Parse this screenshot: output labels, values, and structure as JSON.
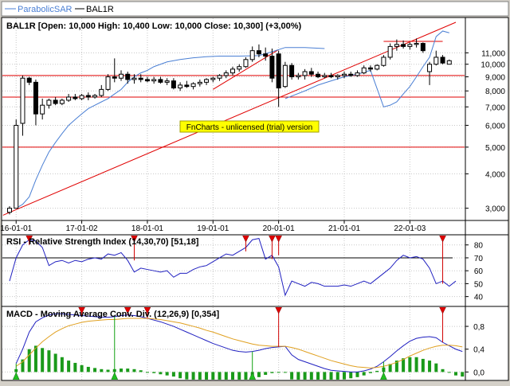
{
  "legend": [
    {
      "label": "ParabolicSAR",
      "color": "#4a7fd4"
    },
    {
      "label": "BAL1R",
      "color": "#000000"
    }
  ],
  "watermark": "FnCharts - unlicensed (trial) version",
  "chart_data": [
    {
      "type": "candlestick",
      "title": "BAL1R [Open: 10,000  High: 10,400  Low: 10,000  Close: 10,300] (+3,00%)",
      "scale": "log",
      "ylim": [
        2.8,
        14.2
      ],
      "xlim": [
        0,
        68
      ],
      "yticks": [
        3,
        4,
        5,
        6,
        7,
        8,
        9,
        10,
        11
      ],
      "ytick_labels": [
        "3,000",
        "4,000",
        "5,000",
        "6,000",
        "7,000",
        "8,000",
        "9,000",
        "10,000",
        "11,000"
      ],
      "xticks": [
        {
          "x": 1,
          "label": "16-01-01"
        },
        {
          "x": 11,
          "label": "17-01-02"
        },
        {
          "x": 21,
          "label": "18-01-01"
        },
        {
          "x": 31,
          "label": "19-01-01"
        },
        {
          "x": 41,
          "label": "20-01-01"
        },
        {
          "x": 51,
          "label": "21-01-01"
        },
        {
          "x": 61,
          "label": "22-01-03"
        }
      ],
      "candles": [
        {
          "o": 2.9,
          "h": 3.05,
          "l": 2.85,
          "c": 3.0
        },
        {
          "o": 3.0,
          "h": 6.3,
          "l": 3.0,
          "c": 6.0
        },
        {
          "o": 6.1,
          "h": 9.1,
          "l": 5.5,
          "c": 8.9
        },
        {
          "o": 8.9,
          "h": 9.0,
          "l": 8.4,
          "c": 8.6
        },
        {
          "o": 8.6,
          "h": 8.8,
          "l": 6.0,
          "c": 6.6
        },
        {
          "o": 6.6,
          "h": 7.5,
          "l": 6.3,
          "c": 7.1
        },
        {
          "o": 7.1,
          "h": 7.5,
          "l": 6.9,
          "c": 7.4
        },
        {
          "o": 7.4,
          "h": 7.6,
          "l": 7.1,
          "c": 7.2
        },
        {
          "o": 7.2,
          "h": 7.5,
          "l": 7.1,
          "c": 7.4
        },
        {
          "o": 7.4,
          "h": 7.8,
          "l": 7.3,
          "c": 7.6
        },
        {
          "o": 7.6,
          "h": 7.8,
          "l": 7.4,
          "c": 7.5
        },
        {
          "o": 7.5,
          "h": 7.8,
          "l": 7.4,
          "c": 7.7
        },
        {
          "o": 7.7,
          "h": 7.9,
          "l": 7.4,
          "c": 7.6
        },
        {
          "o": 7.6,
          "h": 7.8,
          "l": 7.5,
          "c": 7.7
        },
        {
          "o": 7.7,
          "h": 8.4,
          "l": 7.6,
          "c": 8.1
        },
        {
          "o": 8.1,
          "h": 9.2,
          "l": 8.0,
          "c": 9.0
        },
        {
          "o": 9.0,
          "h": 10.5,
          "l": 8.6,
          "c": 8.9
        },
        {
          "o": 8.9,
          "h": 9.5,
          "l": 8.7,
          "c": 9.2
        },
        {
          "o": 9.2,
          "h": 9.4,
          "l": 8.5,
          "c": 8.8
        },
        {
          "o": 8.8,
          "h": 9.2,
          "l": 8.5,
          "c": 8.9
        },
        {
          "o": 8.9,
          "h": 9.2,
          "l": 8.6,
          "c": 8.8
        },
        {
          "o": 8.8,
          "h": 9.0,
          "l": 8.6,
          "c": 8.7
        },
        {
          "o": 8.7,
          "h": 9.0,
          "l": 8.5,
          "c": 8.8
        },
        {
          "o": 8.8,
          "h": 9.0,
          "l": 8.5,
          "c": 8.6
        },
        {
          "o": 8.6,
          "h": 8.9,
          "l": 8.4,
          "c": 8.7
        },
        {
          "o": 8.7,
          "h": 8.9,
          "l": 8.1,
          "c": 8.2
        },
        {
          "o": 8.2,
          "h": 8.6,
          "l": 8.0,
          "c": 8.4
        },
        {
          "o": 8.4,
          "h": 8.7,
          "l": 8.2,
          "c": 8.3
        },
        {
          "o": 8.3,
          "h": 8.6,
          "l": 8.1,
          "c": 8.5
        },
        {
          "o": 8.5,
          "h": 8.8,
          "l": 8.3,
          "c": 8.6
        },
        {
          "o": 8.6,
          "h": 8.9,
          "l": 8.4,
          "c": 8.8
        },
        {
          "o": 8.8,
          "h": 9.0,
          "l": 8.6,
          "c": 8.9
        },
        {
          "o": 8.9,
          "h": 9.2,
          "l": 8.7,
          "c": 9.1
        },
        {
          "o": 9.1,
          "h": 9.5,
          "l": 8.9,
          "c": 9.3
        },
        {
          "o": 9.3,
          "h": 9.8,
          "l": 9.1,
          "c": 9.6
        },
        {
          "o": 9.6,
          "h": 10.0,
          "l": 9.4,
          "c": 9.8
        },
        {
          "o": 9.8,
          "h": 10.6,
          "l": 9.7,
          "c": 10.4
        },
        {
          "o": 10.4,
          "h": 11.6,
          "l": 10.2,
          "c": 11.2
        },
        {
          "o": 11.2,
          "h": 11.8,
          "l": 10.6,
          "c": 10.9
        },
        {
          "o": 10.9,
          "h": 11.5,
          "l": 10.3,
          "c": 10.7
        },
        {
          "o": 10.7,
          "h": 11.4,
          "l": 8.6,
          "c": 8.9
        },
        {
          "o": 10.9,
          "h": 11.2,
          "l": 7.0,
          "c": 8.2
        },
        {
          "o": 8.3,
          "h": 10.2,
          "l": 8.2,
          "c": 9.9
        },
        {
          "o": 9.9,
          "h": 10.1,
          "l": 8.8,
          "c": 9.0
        },
        {
          "o": 9.0,
          "h": 9.3,
          "l": 8.8,
          "c": 9.1
        },
        {
          "o": 9.1,
          "h": 9.6,
          "l": 8.8,
          "c": 9.4
        },
        {
          "o": 9.4,
          "h": 9.7,
          "l": 9.0,
          "c": 9.2
        },
        {
          "o": 9.2,
          "h": 9.4,
          "l": 8.9,
          "c": 9.0
        },
        {
          "o": 9.0,
          "h": 9.3,
          "l": 8.9,
          "c": 9.1
        },
        {
          "o": 9.1,
          "h": 9.3,
          "l": 8.9,
          "c": 9.0
        },
        {
          "o": 9.0,
          "h": 9.2,
          "l": 8.8,
          "c": 9.1
        },
        {
          "o": 9.1,
          "h": 9.4,
          "l": 8.9,
          "c": 9.2
        },
        {
          "o": 9.2,
          "h": 9.4,
          "l": 9.0,
          "c": 9.1
        },
        {
          "o": 9.1,
          "h": 9.5,
          "l": 9.0,
          "c": 9.3
        },
        {
          "o": 9.3,
          "h": 9.9,
          "l": 9.2,
          "c": 9.7
        },
        {
          "o": 9.7,
          "h": 9.9,
          "l": 9.4,
          "c": 9.6
        },
        {
          "o": 9.6,
          "h": 10.0,
          "l": 9.5,
          "c": 9.9
        },
        {
          "o": 9.9,
          "h": 10.8,
          "l": 9.8,
          "c": 10.6
        },
        {
          "o": 10.6,
          "h": 11.9,
          "l": 10.4,
          "c": 11.6
        },
        {
          "o": 11.6,
          "h": 12.3,
          "l": 11.2,
          "c": 11.8
        },
        {
          "o": 11.8,
          "h": 12.2,
          "l": 11.4,
          "c": 11.6
        },
        {
          "o": 11.6,
          "h": 12.0,
          "l": 11.3,
          "c": 11.8
        },
        {
          "o": 11.8,
          "h": 12.4,
          "l": 11.5,
          "c": 11.9
        },
        {
          "o": 11.9,
          "h": 12.0,
          "l": 11.0,
          "c": 11.2
        },
        {
          "o": 9.4,
          "h": 10.2,
          "l": 8.4,
          "c": 10.0
        },
        {
          "o": 10.0,
          "h": 11.2,
          "l": 9.9,
          "c": 10.6
        },
        {
          "o": 10.6,
          "h": 10.8,
          "l": 10.0,
          "c": 10.1
        },
        {
          "o": 10.0,
          "h": 10.4,
          "l": 10.0,
          "c": 10.3
        }
      ],
      "sar": [
        [
          1,
          3.0
        ],
        [
          2,
          3.1
        ],
        [
          3,
          3.3
        ],
        [
          4,
          3.8
        ],
        [
          5,
          4.3
        ],
        [
          6,
          4.8
        ],
        [
          7,
          5.2
        ],
        [
          8,
          5.6
        ],
        [
          9,
          6.0
        ],
        [
          10,
          6.3
        ],
        [
          11,
          6.6
        ],
        [
          12,
          6.9
        ],
        [
          13,
          7.1
        ],
        [
          14,
          7.3
        ],
        [
          15,
          7.5
        ],
        [
          16,
          7.8
        ],
        [
          17,
          8.1
        ],
        [
          18,
          8.6
        ],
        [
          19,
          9.0
        ],
        [
          20,
          9.3
        ],
        [
          21,
          9.5
        ],
        [
          22,
          9.8
        ],
        [
          24,
          10.2
        ],
        [
          26,
          10.4
        ],
        [
          28,
          10.55
        ],
        [
          30,
          10.65
        ],
        [
          32,
          10.7
        ],
        [
          35,
          10.7
        ],
        [
          38,
          10.75
        ],
        [
          40,
          11.1
        ],
        [
          42,
          11.5
        ],
        [
          45,
          11.5
        ],
        [
          48,
          11.4
        ],
        [
          42,
          7.5
        ],
        [
          45,
          8.0
        ],
        [
          47,
          8.4
        ],
        [
          49,
          8.7
        ],
        [
          51,
          9.0
        ],
        [
          53,
          9.2
        ],
        [
          55,
          9.5
        ],
        [
          57,
          7.0
        ],
        [
          58,
          7.1
        ],
        [
          59,
          7.3
        ],
        [
          60,
          7.8
        ],
        [
          61,
          8.3
        ],
        [
          62,
          9.0
        ],
        [
          63,
          9.8
        ],
        [
          64,
          10.6
        ],
        [
          65,
          12.6
        ],
        [
          66,
          13.2
        ],
        [
          67,
          13.0
        ]
      ],
      "trendlines": [
        {
          "x": [
            -1,
            68
          ],
          "y": [
            2.83,
            14.2
          ]
        },
        {
          "x": [
            31,
            41
          ],
          "y": [
            8.1,
            11.3
          ]
        },
        {
          "x": [
            57,
            66
          ],
          "y": [
            12.1,
            12.1
          ]
        }
      ],
      "hlines": [
        9.1,
        7.6,
        5.0
      ]
    },
    {
      "type": "line",
      "title": "RSI - Relative Strength Index (14,30,70) [51,18]",
      "ylim": [
        33,
        86
      ],
      "yticks": [
        40,
        50,
        60,
        70,
        80
      ],
      "ytick_labels": [
        "40",
        "50",
        "60",
        "70",
        "80"
      ],
      "hlines": [
        70,
        30
      ],
      "series": [
        {
          "values": [
            52,
            70,
            80,
            84,
            83,
            78,
            64,
            67,
            68,
            66,
            68,
            67,
            69,
            70,
            69,
            73,
            72,
            74,
            68,
            59,
            62,
            61,
            60,
            59,
            60,
            55,
            58,
            58,
            61,
            63,
            64,
            67,
            70,
            73,
            72,
            75,
            78,
            84,
            85,
            69,
            72,
            63,
            41,
            52,
            50,
            48,
            51,
            50,
            48,
            48,
            48,
            49,
            48,
            50,
            52,
            50,
            54,
            58,
            62,
            68,
            72,
            70,
            71,
            69,
            62,
            50,
            52,
            48,
            52
          ]
        }
      ],
      "markers": [
        3,
        19,
        36,
        40,
        41,
        66
      ]
    },
    {
      "type": "bar+line",
      "title": "MACD - Moving Average Conv. Div. (12,26,9) [0,354]",
      "ylim": [
        -0.12,
        1.08
      ],
      "yticks": [
        0.0,
        0.4,
        0.8
      ],
      "ytick_labels": [
        "0,0",
        "0,4",
        "0,8"
      ],
      "series": [
        {
          "values": [
            0.15,
            0.4,
            0.7,
            0.88,
            0.95,
            1.0,
            1.02,
            1.02,
            1.01,
            1.0,
            0.99,
            0.98,
            0.97,
            0.96,
            0.96,
            0.97,
            0.99,
            1.0,
            0.99,
            0.97,
            0.94,
            0.91,
            0.88,
            0.84,
            0.8,
            0.75,
            0.7,
            0.65,
            0.6,
            0.55,
            0.5,
            0.46,
            0.42,
            0.38,
            0.36,
            0.35,
            0.36,
            0.38,
            0.41,
            0.43,
            0.44,
            0.45,
            0.3,
            0.22,
            0.18,
            0.14,
            0.1,
            0.06,
            0.03,
            0.02,
            0.01,
            0.0,
            0.0,
            0.02,
            0.05,
            0.1,
            0.18,
            0.27,
            0.37,
            0.46,
            0.54,
            0.59,
            0.61,
            0.62,
            0.6,
            0.52,
            0.46,
            0.4,
            0.36
          ]
        },
        {
          "values": [
            0.1,
            0.18,
            0.3,
            0.42,
            0.53,
            0.62,
            0.7,
            0.76,
            0.81,
            0.84,
            0.87,
            0.89,
            0.9,
            0.91,
            0.92,
            0.92,
            0.93,
            0.94,
            0.94,
            0.94,
            0.94,
            0.93,
            0.92,
            0.9,
            0.88,
            0.86,
            0.83,
            0.8,
            0.77,
            0.73,
            0.7,
            0.66,
            0.62,
            0.58,
            0.55,
            0.52,
            0.49,
            0.47,
            0.46,
            0.45,
            0.45,
            0.45,
            0.43,
            0.4,
            0.36,
            0.32,
            0.28,
            0.24,
            0.2,
            0.17,
            0.14,
            0.11,
            0.09,
            0.08,
            0.07,
            0.08,
            0.1,
            0.13,
            0.17,
            0.22,
            0.28,
            0.33,
            0.38,
            0.42,
            0.45,
            0.47,
            0.47,
            0.46,
            0.44
          ]
        }
      ],
      "histogram": [
        0.05,
        0.22,
        0.4,
        0.46,
        0.42,
        0.38,
        0.32,
        0.26,
        0.2,
        0.16,
        0.12,
        0.09,
        0.07,
        0.05,
        0.04,
        0.05,
        0.06,
        0.06,
        0.05,
        0.03,
        0.0,
        -0.02,
        -0.04,
        -0.06,
        -0.08,
        -0.11,
        -0.13,
        -0.15,
        -0.17,
        -0.18,
        -0.2,
        -0.2,
        -0.2,
        -0.2,
        -0.19,
        -0.17,
        -0.13,
        -0.09,
        -0.05,
        -0.02,
        -0.01,
        0.0,
        -0.13,
        -0.18,
        -0.18,
        -0.18,
        -0.18,
        -0.18,
        -0.17,
        -0.15,
        -0.13,
        -0.11,
        -0.09,
        -0.06,
        -0.02,
        0.02,
        0.08,
        0.14,
        0.2,
        0.24,
        0.26,
        0.26,
        0.23,
        0.2,
        0.15,
        0.05,
        -0.01,
        -0.06,
        -0.08
      ],
      "sell_markers": [
        11,
        18,
        21,
        41,
        66
      ],
      "buy_markers": [
        1,
        16,
        37,
        57
      ]
    }
  ]
}
